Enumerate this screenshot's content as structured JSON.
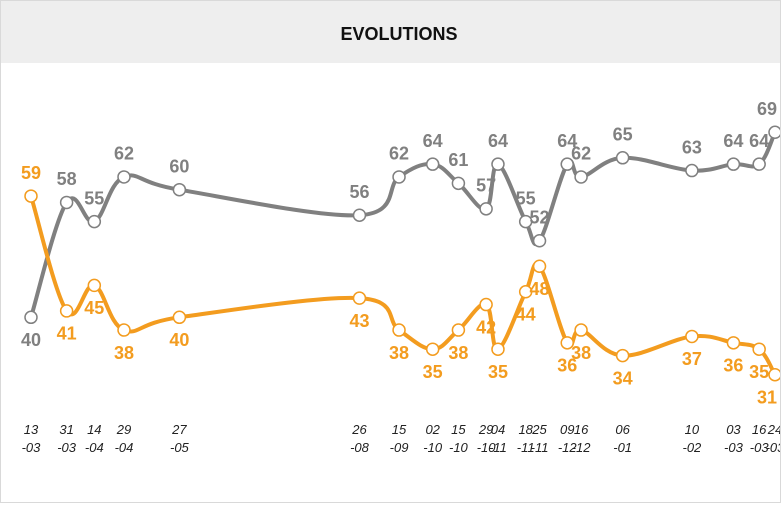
{
  "chart_data": {
    "type": "line",
    "title": "EVOLUTIONS",
    "x": [
      "13-03",
      "31-03",
      "14-04",
      "29-04",
      "27-05",
      "26-08",
      "15-09",
      "02-10",
      "15-10",
      "29-10",
      "04-11",
      "18-11",
      "25-11",
      "09-12",
      "16-12",
      "06-01",
      "10-02",
      "03-03",
      "16-03",
      "24-03"
    ],
    "series": [
      {
        "name": null,
        "color": "#808080",
        "values": [
          40,
          58,
          55,
          62,
          60,
          56,
          62,
          64,
          61,
          57,
          64,
          55,
          52,
          64,
          62,
          65,
          63,
          64,
          64,
          69
        ]
      },
      {
        "name": null,
        "color": "#f39c1f",
        "values": [
          59,
          41,
          45,
          38,
          40,
          43,
          38,
          35,
          38,
          42,
          35,
          44,
          48,
          36,
          38,
          34,
          37,
          36,
          35,
          31
        ]
      }
    ],
    "ylim": [
      25,
      75
    ]
  }
}
